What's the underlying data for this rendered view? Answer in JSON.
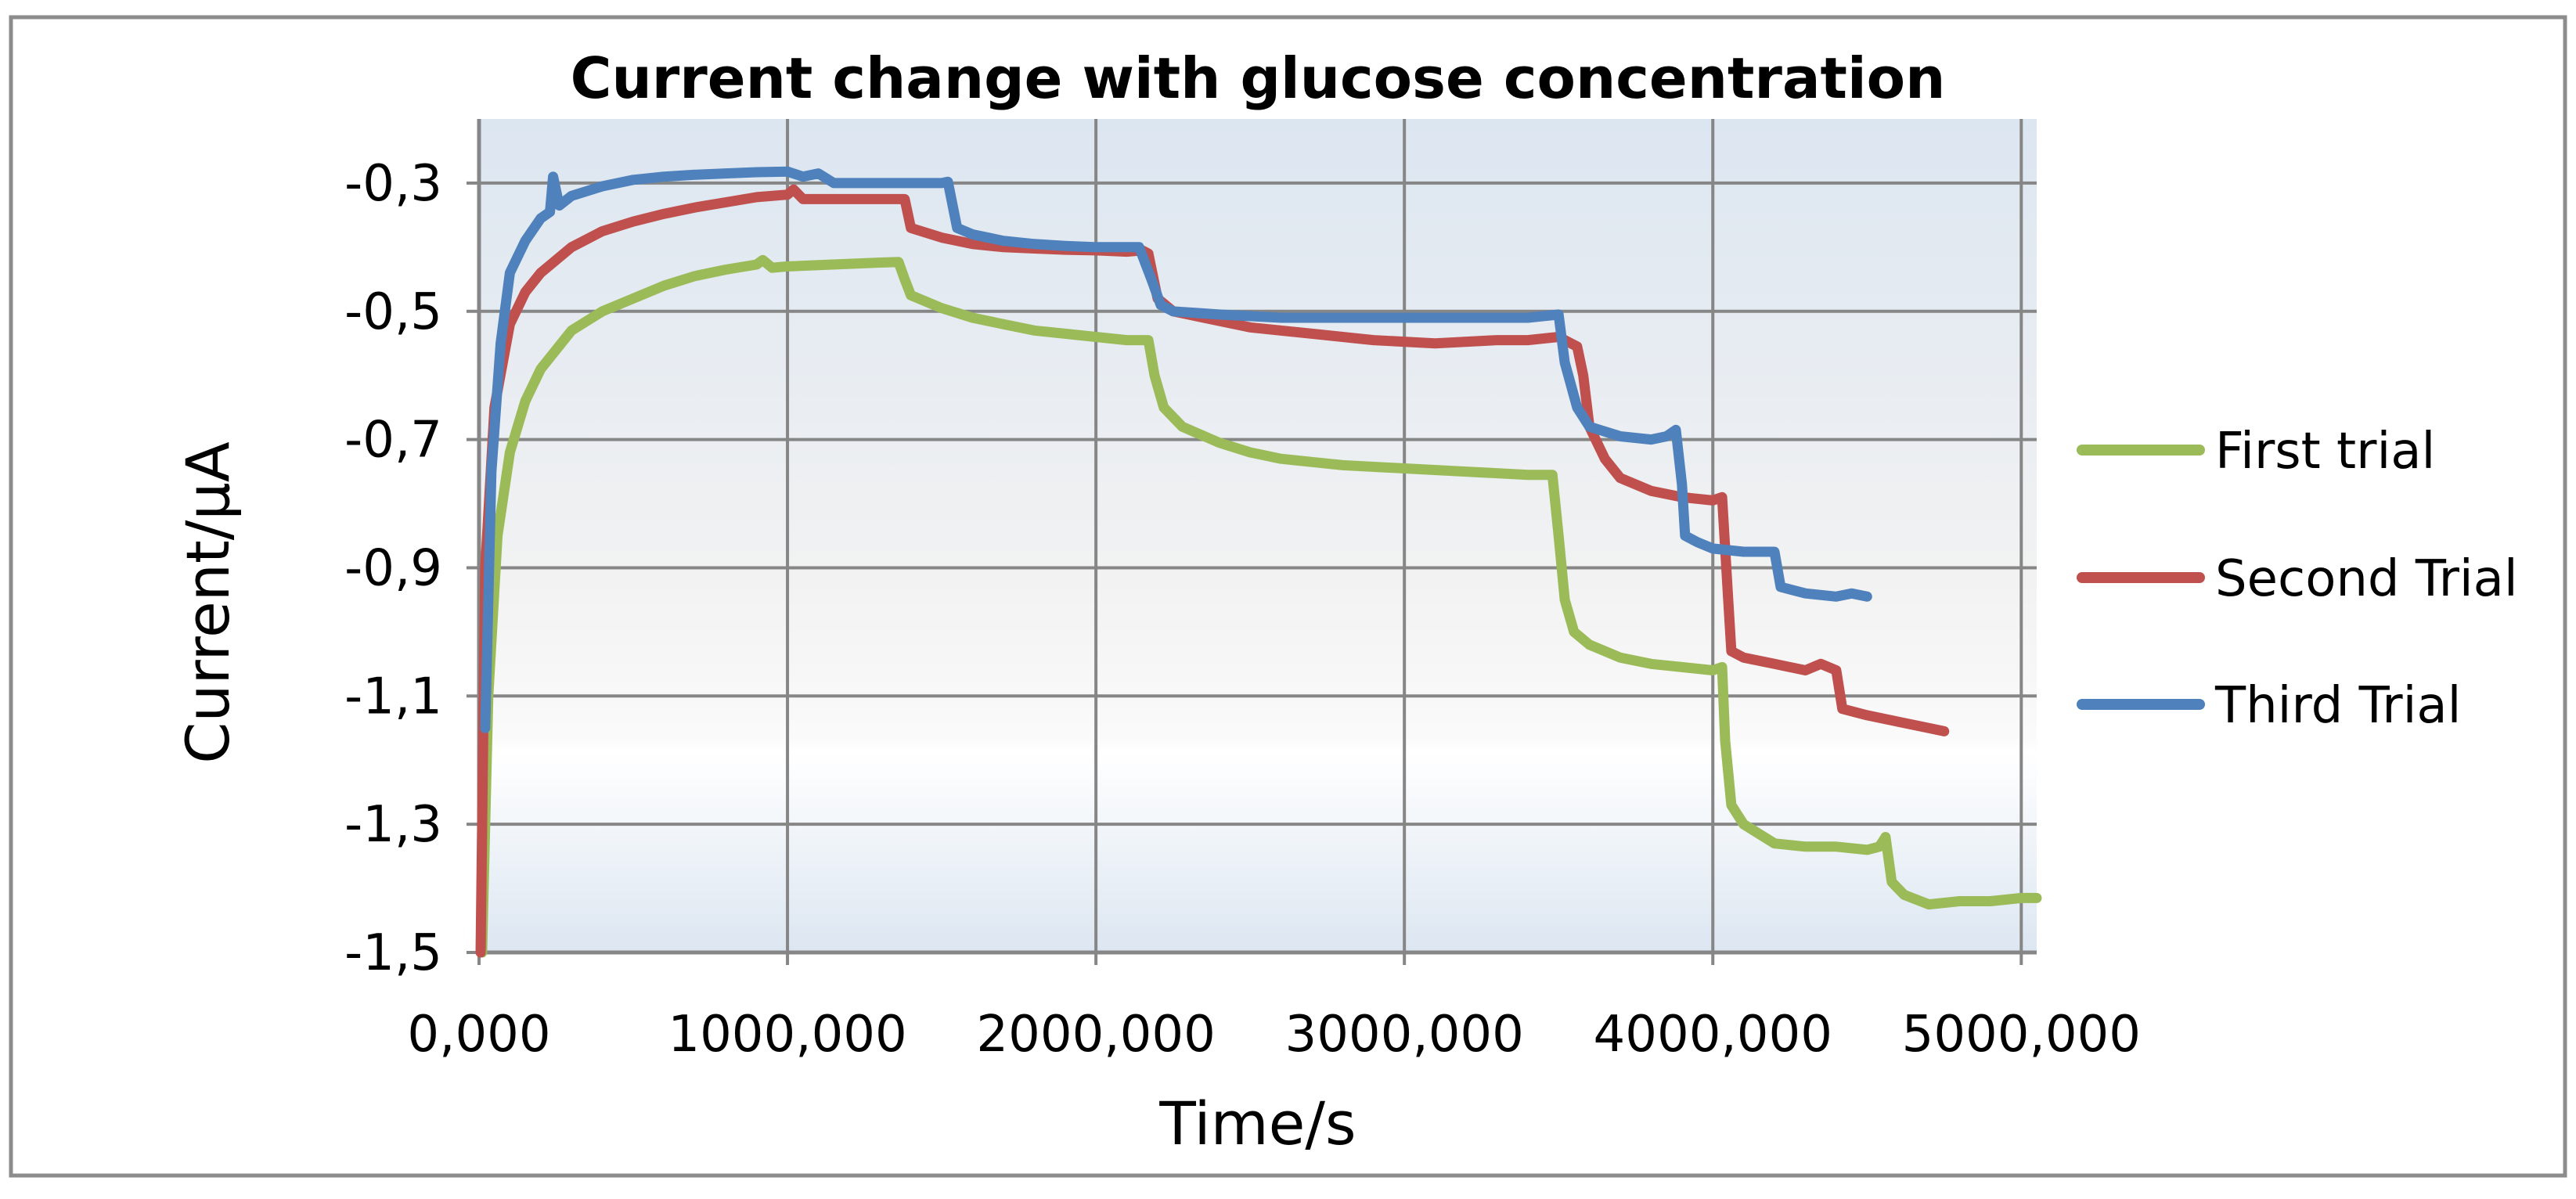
{
  "chart_data": {
    "type": "line",
    "title": "Current change with glucose concentration",
    "xlabel": "Time/s",
    "ylabel": "Current/µA",
    "xlim": [
      0,
      5050000
    ],
    "ylim": [
      -1.5,
      -0.2
    ],
    "grid": true,
    "legend_position": "right",
    "x_ticks": [
      0,
      1000000,
      2000000,
      3000000,
      4000000,
      5000000
    ],
    "x_tick_labels": [
      "0,000",
      "1000,000",
      "2000,000",
      "3000,000",
      "4000,000",
      "5000,000"
    ],
    "y_ticks": [
      -0.3,
      -0.5,
      -0.7,
      -0.9,
      -1.1,
      -1.3,
      -1.5
    ],
    "y_tick_labels": [
      "-0,3",
      "-0,5",
      "-0,7",
      "-0,9",
      "-1,1",
      "-1,3",
      "-1,5"
    ],
    "series": [
      {
        "name": "First trial",
        "color": "#9BBB59",
        "points": [
          [
            10000,
            -1.5
          ],
          [
            30000,
            -1.1
          ],
          [
            60000,
            -0.85
          ],
          [
            100000,
            -0.72
          ],
          [
            150000,
            -0.64
          ],
          [
            200000,
            -0.59
          ],
          [
            300000,
            -0.53
          ],
          [
            400000,
            -0.5
          ],
          [
            500000,
            -0.48
          ],
          [
            600000,
            -0.46
          ],
          [
            700000,
            -0.445
          ],
          [
            800000,
            -0.435
          ],
          [
            900000,
            -0.427
          ],
          [
            920000,
            -0.42
          ],
          [
            950000,
            -0.432
          ],
          [
            1000000,
            -0.43
          ],
          [
            1100000,
            -0.428
          ],
          [
            1200000,
            -0.426
          ],
          [
            1300000,
            -0.424
          ],
          [
            1360000,
            -0.423
          ],
          [
            1380000,
            -0.45
          ],
          [
            1400000,
            -0.475
          ],
          [
            1500000,
            -0.495
          ],
          [
            1600000,
            -0.51
          ],
          [
            1700000,
            -0.52
          ],
          [
            1800000,
            -0.53
          ],
          [
            1900000,
            -0.535
          ],
          [
            2000000,
            -0.54
          ],
          [
            2100000,
            -0.545
          ],
          [
            2170000,
            -0.545
          ],
          [
            2190000,
            -0.6
          ],
          [
            2220000,
            -0.65
          ],
          [
            2280000,
            -0.68
          ],
          [
            2400000,
            -0.705
          ],
          [
            2500000,
            -0.72
          ],
          [
            2600000,
            -0.73
          ],
          [
            2700000,
            -0.735
          ],
          [
            2800000,
            -0.74
          ],
          [
            3000000,
            -0.745
          ],
          [
            3200000,
            -0.75
          ],
          [
            3400000,
            -0.755
          ],
          [
            3480000,
            -0.755
          ],
          [
            3500000,
            -0.85
          ],
          [
            3520000,
            -0.95
          ],
          [
            3550000,
            -1.0
          ],
          [
            3600000,
            -1.02
          ],
          [
            3700000,
            -1.04
          ],
          [
            3800000,
            -1.05
          ],
          [
            3900000,
            -1.055
          ],
          [
            4000000,
            -1.06
          ],
          [
            4030000,
            -1.055
          ],
          [
            4040000,
            -1.17
          ],
          [
            4060000,
            -1.27
          ],
          [
            4100000,
            -1.3
          ],
          [
            4200000,
            -1.33
          ],
          [
            4300000,
            -1.335
          ],
          [
            4400000,
            -1.335
          ],
          [
            4500000,
            -1.34
          ],
          [
            4540000,
            -1.335
          ],
          [
            4560000,
            -1.32
          ],
          [
            4580000,
            -1.39
          ],
          [
            4620000,
            -1.41
          ],
          [
            4700000,
            -1.425
          ],
          [
            4800000,
            -1.42
          ],
          [
            4900000,
            -1.42
          ],
          [
            5000000,
            -1.415
          ],
          [
            5050000,
            -1.415
          ]
        ]
      },
      {
        "name": "Second Trial",
        "color": "#C0504D",
        "points": [
          [
            5000,
            -1.5
          ],
          [
            20000,
            -0.9
          ],
          [
            50000,
            -0.65
          ],
          [
            100000,
            -0.52
          ],
          [
            150000,
            -0.47
          ],
          [
            200000,
            -0.44
          ],
          [
            300000,
            -0.4
          ],
          [
            400000,
            -0.375
          ],
          [
            500000,
            -0.36
          ],
          [
            600000,
            -0.348
          ],
          [
            700000,
            -0.338
          ],
          [
            800000,
            -0.33
          ],
          [
            900000,
            -0.322
          ],
          [
            1000000,
            -0.318
          ],
          [
            1020000,
            -0.31
          ],
          [
            1050000,
            -0.325
          ],
          [
            1100000,
            -0.325
          ],
          [
            1200000,
            -0.325
          ],
          [
            1300000,
            -0.325
          ],
          [
            1380000,
            -0.325
          ],
          [
            1400000,
            -0.37
          ],
          [
            1500000,
            -0.385
          ],
          [
            1600000,
            -0.395
          ],
          [
            1700000,
            -0.4
          ],
          [
            1800000,
            -0.402
          ],
          [
            1900000,
            -0.404
          ],
          [
            2000000,
            -0.405
          ],
          [
            2100000,
            -0.407
          ],
          [
            2150000,
            -0.405
          ],
          [
            2170000,
            -0.41
          ],
          [
            2200000,
            -0.48
          ],
          [
            2250000,
            -0.5
          ],
          [
            2350000,
            -0.51
          ],
          [
            2500000,
            -0.525
          ],
          [
            2700000,
            -0.535
          ],
          [
            2900000,
            -0.545
          ],
          [
            3100000,
            -0.55
          ],
          [
            3300000,
            -0.545
          ],
          [
            3400000,
            -0.545
          ],
          [
            3500000,
            -0.54
          ],
          [
            3560000,
            -0.555
          ],
          [
            3580000,
            -0.6
          ],
          [
            3600000,
            -0.68
          ],
          [
            3650000,
            -0.73
          ],
          [
            3700000,
            -0.76
          ],
          [
            3800000,
            -0.78
          ],
          [
            3900000,
            -0.79
          ],
          [
            4000000,
            -0.795
          ],
          [
            4030000,
            -0.79
          ],
          [
            4050000,
            -0.95
          ],
          [
            4060000,
            -1.03
          ],
          [
            4100000,
            -1.04
          ],
          [
            4200000,
            -1.05
          ],
          [
            4300000,
            -1.06
          ],
          [
            4350000,
            -1.05
          ],
          [
            4400000,
            -1.06
          ],
          [
            4420000,
            -1.12
          ],
          [
            4500000,
            -1.13
          ],
          [
            4600000,
            -1.14
          ],
          [
            4700000,
            -1.15
          ],
          [
            4750000,
            -1.155
          ]
        ]
      },
      {
        "name": "Third Trial",
        "color": "#4F81BD",
        "points": [
          [
            20000,
            -1.15
          ],
          [
            40000,
            -0.75
          ],
          [
            70000,
            -0.55
          ],
          [
            100000,
            -0.44
          ],
          [
            150000,
            -0.39
          ],
          [
            200000,
            -0.355
          ],
          [
            230000,
            -0.345
          ],
          [
            240000,
            -0.29
          ],
          [
            260000,
            -0.335
          ],
          [
            300000,
            -0.32
          ],
          [
            400000,
            -0.305
          ],
          [
            500000,
            -0.295
          ],
          [
            600000,
            -0.29
          ],
          [
            700000,
            -0.287
          ],
          [
            800000,
            -0.285
          ],
          [
            900000,
            -0.283
          ],
          [
            1000000,
            -0.282
          ],
          [
            1050000,
            -0.29
          ],
          [
            1100000,
            -0.285
          ],
          [
            1150000,
            -0.3
          ],
          [
            1200000,
            -0.3
          ],
          [
            1300000,
            -0.3
          ],
          [
            1400000,
            -0.3
          ],
          [
            1500000,
            -0.3
          ],
          [
            1520000,
            -0.298
          ],
          [
            1550000,
            -0.37
          ],
          [
            1600000,
            -0.38
          ],
          [
            1700000,
            -0.39
          ],
          [
            1800000,
            -0.395
          ],
          [
            1900000,
            -0.398
          ],
          [
            2000000,
            -0.4
          ],
          [
            2100000,
            -0.4
          ],
          [
            2140000,
            -0.4
          ],
          [
            2180000,
            -0.45
          ],
          [
            2210000,
            -0.49
          ],
          [
            2250000,
            -0.5
          ],
          [
            2400000,
            -0.505
          ],
          [
            2600000,
            -0.51
          ],
          [
            2800000,
            -0.51
          ],
          [
            3000000,
            -0.51
          ],
          [
            3200000,
            -0.51
          ],
          [
            3400000,
            -0.51
          ],
          [
            3500000,
            -0.505
          ],
          [
            3520000,
            -0.58
          ],
          [
            3560000,
            -0.65
          ],
          [
            3600000,
            -0.68
          ],
          [
            3700000,
            -0.695
          ],
          [
            3800000,
            -0.7
          ],
          [
            3850000,
            -0.695
          ],
          [
            3880000,
            -0.685
          ],
          [
            3900000,
            -0.77
          ],
          [
            3910000,
            -0.85
          ],
          [
            3950000,
            -0.86
          ],
          [
            4000000,
            -0.87
          ],
          [
            4100000,
            -0.875
          ],
          [
            4200000,
            -0.875
          ],
          [
            4220000,
            -0.93
          ],
          [
            4300000,
            -0.94
          ],
          [
            4400000,
            -0.945
          ],
          [
            4450000,
            -0.94
          ],
          [
            4500000,
            -0.945
          ]
        ]
      }
    ]
  }
}
